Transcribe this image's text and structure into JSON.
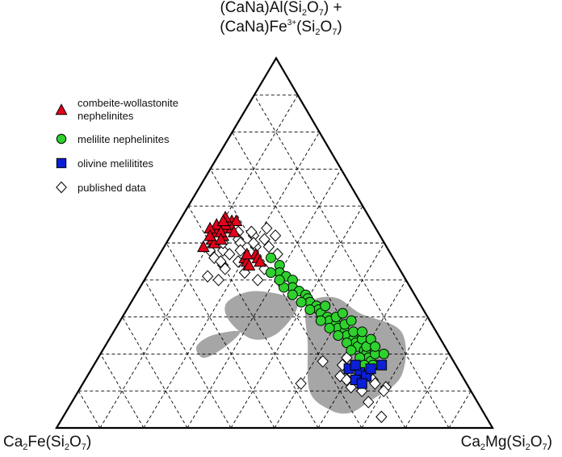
{
  "chart_data": {
    "type": "scatter",
    "subtype": "ternary",
    "vertices": {
      "top": {
        "line1": {
          "a": "(CaNa)Al(Si",
          "s1": "2",
          "b": "O",
          "s2": "7",
          "c": ") +"
        },
        "line2": {
          "a": "(CaNa)Fe",
          "sup": "3+",
          "b": "(Si",
          "s1": "2",
          "c": "O",
          "s2": "7",
          "d": ")"
        }
      },
      "left": {
        "a": "Ca",
        "s1": "2",
        "b": "Fe(Si",
        "s2": "2",
        "c": "O",
        "s3": "7",
        "d": ")"
      },
      "right": {
        "a": "Ca",
        "s1": "2",
        "b": "Mg(Si",
        "s2": "2",
        "c": "O",
        "s3": "7",
        "d": ")"
      }
    },
    "grid": {
      "divisions": 10,
      "style": "dashed"
    },
    "legend_position": "top-left",
    "colors": {
      "combeite": "#e3001b",
      "melilite": "#2ed12e",
      "olivine": "#0a1fd6",
      "published": "#ffffff",
      "field": "#a6a6a6"
    },
    "series": [
      {
        "name": "combeite-wollastonite\nnephelinites",
        "label_lines": [
          "combeite-wollastonite",
          "nephelinites"
        ],
        "marker": "triangle",
        "points": [
          [
            0.56,
            0.12
          ],
          [
            0.54,
            0.11
          ],
          [
            0.56,
            0.13
          ],
          [
            0.53,
            0.1
          ],
          [
            0.54,
            0.13
          ],
          [
            0.52,
            0.12
          ],
          [
            0.55,
            0.09
          ],
          [
            0.57,
            0.1
          ],
          [
            0.51,
            0.1
          ],
          [
            0.55,
            0.11
          ],
          [
            0.53,
            0.14
          ],
          [
            0.5,
            0.11
          ],
          [
            0.53,
            0.11
          ],
          [
            0.56,
            0.1
          ],
          [
            0.49,
            0.09
          ],
          [
            0.54,
            0.08
          ],
          [
            0.52,
            0.09
          ],
          [
            0.51,
            0.12
          ],
          [
            0.46,
            0.2
          ],
          [
            0.47,
            0.22
          ],
          [
            0.45,
            0.21
          ],
          [
            0.44,
            0.22
          ],
          [
            0.46,
            0.23
          ],
          [
            0.45,
            0.24
          ],
          [
            0.47,
            0.2
          ]
        ]
      },
      {
        "name": "melilite nephelinites",
        "label_lines": [
          "melilite nephelinites"
        ],
        "marker": "circle",
        "points": [
          [
            0.46,
            0.26
          ],
          [
            0.44,
            0.29
          ],
          [
            0.42,
            0.3
          ],
          [
            0.41,
            0.32
          ],
          [
            0.4,
            0.34
          ],
          [
            0.38,
            0.35
          ],
          [
            0.37,
            0.37
          ],
          [
            0.36,
            0.39
          ],
          [
            0.35,
            0.4
          ],
          [
            0.34,
            0.41
          ],
          [
            0.33,
            0.43
          ],
          [
            0.32,
            0.44
          ],
          [
            0.31,
            0.45
          ],
          [
            0.3,
            0.47
          ],
          [
            0.29,
            0.48
          ],
          [
            0.28,
            0.5
          ],
          [
            0.27,
            0.51
          ],
          [
            0.26,
            0.53
          ],
          [
            0.25,
            0.54
          ],
          [
            0.24,
            0.56
          ],
          [
            0.23,
            0.57
          ],
          [
            0.22,
            0.58
          ],
          [
            0.21,
            0.6
          ],
          [
            0.2,
            0.61
          ],
          [
            0.19,
            0.62
          ],
          [
            0.18,
            0.63
          ],
          [
            0.17,
            0.64
          ],
          [
            0.33,
            0.45
          ],
          [
            0.3,
            0.49
          ],
          [
            0.28,
            0.52
          ],
          [
            0.26,
            0.55
          ],
          [
            0.24,
            0.58
          ],
          [
            0.22,
            0.6
          ],
          [
            0.2,
            0.63
          ],
          [
            0.36,
            0.36
          ],
          [
            0.34,
            0.39
          ],
          [
            0.32,
            0.42
          ],
          [
            0.29,
            0.46
          ],
          [
            0.27,
            0.49
          ],
          [
            0.25,
            0.52
          ],
          [
            0.23,
            0.55
          ],
          [
            0.21,
            0.57
          ],
          [
            0.19,
            0.6
          ],
          [
            0.17,
            0.62
          ],
          [
            0.38,
            0.33
          ],
          [
            0.4,
            0.31
          ],
          [
            0.42,
            0.28
          ],
          [
            0.31,
            0.5
          ],
          [
            0.29,
            0.53
          ],
          [
            0.26,
            0.57
          ],
          [
            0.24,
            0.6
          ],
          [
            0.22,
            0.62
          ],
          [
            0.2,
            0.65
          ]
        ]
      },
      {
        "name": "olivine melilitites",
        "label_lines": [
          "olivine melilitites"
        ],
        "marker": "square",
        "points": [
          [
            0.15,
            0.62
          ],
          [
            0.16,
            0.59
          ],
          [
            0.13,
            0.62
          ],
          [
            0.14,
            0.64
          ],
          [
            0.17,
            0.66
          ],
          [
            0.16,
            0.64
          ],
          [
            0.12,
            0.64
          ],
          [
            0.17,
            0.6
          ]
        ]
      },
      {
        "name": "published data",
        "label_lines": [
          "published data"
        ],
        "marker": "diamond",
        "points": [
          [
            0.53,
            0.15
          ],
          [
            0.51,
            0.16
          ],
          [
            0.52,
            0.19
          ],
          [
            0.5,
            0.17
          ],
          [
            0.48,
            0.18
          ],
          [
            0.49,
            0.21
          ],
          [
            0.48,
            0.14
          ],
          [
            0.46,
            0.13
          ],
          [
            0.5,
            0.2
          ],
          [
            0.53,
            0.18
          ],
          [
            0.51,
            0.22
          ],
          [
            0.47,
            0.16
          ],
          [
            0.45,
            0.19
          ],
          [
            0.44,
            0.16
          ],
          [
            0.43,
            0.17
          ],
          [
            0.41,
            0.14
          ],
          [
            0.47,
            0.27
          ],
          [
            0.49,
            0.24
          ],
          [
            0.54,
            0.21
          ],
          [
            0.52,
            0.24
          ],
          [
            0.42,
            0.22
          ],
          [
            0.4,
            0.17
          ],
          [
            0.45,
            0.15
          ],
          [
            0.4,
            0.26
          ],
          [
            0.43,
            0.26
          ],
          [
            0.48,
            0.11
          ],
          [
            0.5,
            0.13
          ],
          [
            0.19,
            0.57
          ],
          [
            0.17,
            0.57
          ],
          [
            0.15,
            0.6
          ],
          [
            0.13,
            0.66
          ],
          [
            0.11,
            0.7
          ],
          [
            0.14,
            0.58
          ],
          [
            0.13,
            0.6
          ],
          [
            0.11,
            0.62
          ],
          [
            0.1,
            0.65
          ],
          [
            0.12,
            0.67
          ],
          [
            0.1,
            0.7
          ],
          [
            0.07,
            0.68
          ],
          [
            0.03,
            0.73
          ],
          [
            0.12,
            0.5
          ],
          [
            0.18,
            0.52
          ]
        ]
      }
    ],
    "shaded_fields": [
      [
        [
          0.26,
          0.38
        ],
        [
          0.34,
          0.38
        ],
        [
          0.37,
          0.27
        ],
        [
          0.34,
          0.22
        ],
        [
          0.29,
          0.25
        ],
        [
          0.24,
          0.33
        ]
      ],
      [
        [
          0.21,
          0.27
        ],
        [
          0.26,
          0.29
        ],
        [
          0.25,
          0.23
        ],
        [
          0.22,
          0.21
        ],
        [
          0.19,
          0.24
        ]
      ],
      [
        [
          0.07,
          0.68
        ],
        [
          0.14,
          0.72
        ],
        [
          0.26,
          0.66
        ],
        [
          0.31,
          0.54
        ],
        [
          0.35,
          0.47
        ],
        [
          0.35,
          0.42
        ],
        [
          0.32,
          0.41
        ],
        [
          0.23,
          0.46
        ],
        [
          0.1,
          0.53
        ],
        [
          0.05,
          0.6
        ],
        [
          0.04,
          0.65
        ]
      ]
    ]
  }
}
